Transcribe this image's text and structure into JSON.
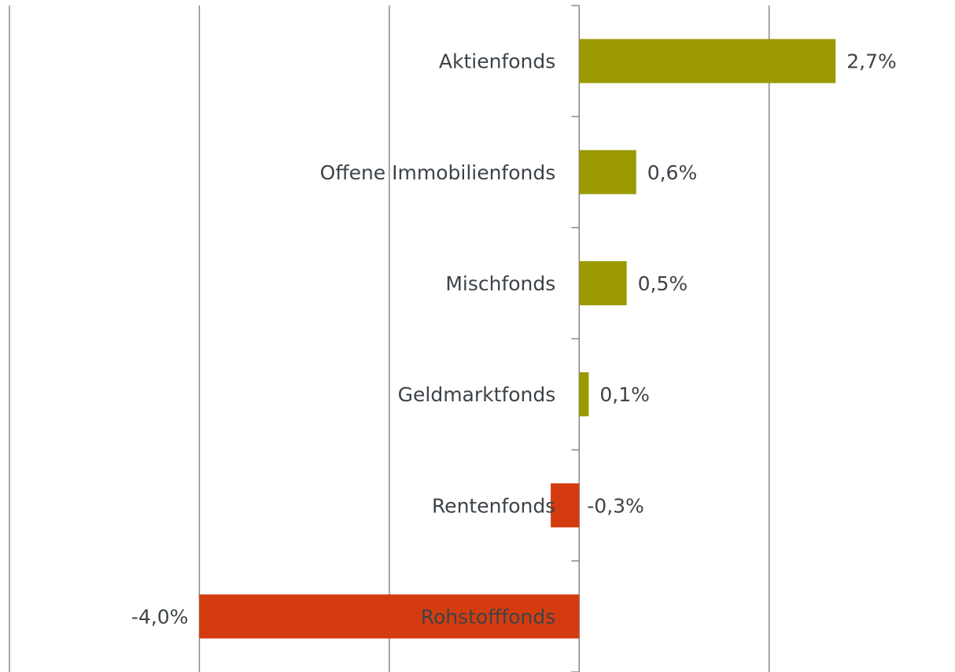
{
  "chart_data": {
    "type": "hbar",
    "categories": [
      "Aktienfonds",
      "Offene Immobilienfonds",
      "Mischfonds",
      "Geldmarktfonds",
      "Rentenfonds",
      "Rohstofffonds"
    ],
    "values": [
      2.7,
      0.6,
      0.5,
      0.1,
      -0.3,
      -4.0
    ],
    "value_labels": [
      "2,7%",
      "0,6%",
      "0,5%",
      "0,1%",
      "-0,3%",
      "-4,0%"
    ],
    "colors": [
      "#9a9a00",
      "#9a9a00",
      "#9a9a00",
      "#9a9a00",
      "#d43c0f",
      "#d43c0f"
    ],
    "xlim": [
      -6,
      3.8
    ],
    "xticks": [
      -6,
      -4,
      -2,
      0,
      2
    ],
    "grid": true
  }
}
